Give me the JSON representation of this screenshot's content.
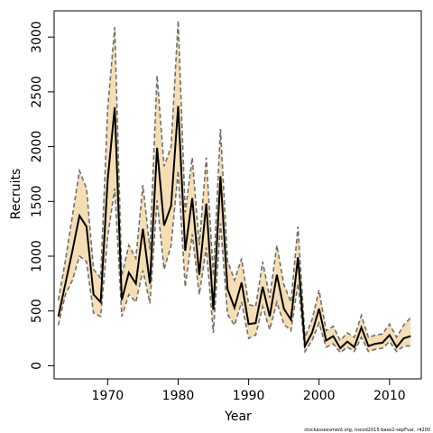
{
  "chart_data": {
    "type": "area",
    "xlabel": "Year",
    "ylabel": "Recruits",
    "footnote": "stockassessment.org, nscod2015-base2-sepFvar, r4200",
    "xlim": [
      1962.4,
      2014.5
    ],
    "ylim": [
      -120,
      3240
    ],
    "x_ticks": [
      1970,
      1980,
      1990,
      2000,
      2010
    ],
    "y_ticks": [
      0,
      500,
      1000,
      1500,
      2000,
      2500,
      3000
    ],
    "grid": false,
    "colors": {
      "band": "#f5deb3",
      "line": "#000000",
      "bounds": "#707070"
    },
    "series": [
      {
        "x": [
          1963,
          1964,
          1965,
          1966,
          1967,
          1968,
          1969,
          1970,
          1971,
          1972,
          1973,
          1974,
          1975,
          1976,
          1977,
          1978,
          1979,
          1980,
          1981,
          1982,
          1983,
          1984,
          1985,
          1986,
          1987,
          1988,
          1989,
          1990,
          1991,
          1992,
          1993,
          1994,
          1995,
          1996,
          1997,
          1998,
          1999,
          2000,
          2001,
          2002,
          2003,
          2004,
          2005,
          2006,
          2007,
          2008,
          2009,
          2010,
          2011,
          2012,
          2013
        ],
        "estimate": [
          450,
          750,
          1050,
          1370,
          1270,
          650,
          580,
          1700,
          2360,
          600,
          850,
          750,
          1250,
          750,
          1990,
          1280,
          1460,
          2370,
          1050,
          1530,
          830,
          1480,
          510,
          1730,
          700,
          530,
          760,
          380,
          390,
          720,
          450,
          830,
          520,
          420,
          990,
          180,
          300,
          520,
          230,
          270,
          160,
          220,
          170,
          350,
          180,
          200,
          210,
          280,
          170,
          250,
          270
        ],
        "lower": [
          370,
          650,
          780,
          1000,
          950,
          480,
          450,
          1180,
          1620,
          450,
          650,
          580,
          870,
          570,
          1510,
          880,
          1100,
          1780,
          720,
          1200,
          650,
          1080,
          300,
          1300,
          470,
          370,
          580,
          250,
          280,
          540,
          330,
          580,
          380,
          320,
          750,
          130,
          230,
          390,
          170,
          200,
          120,
          170,
          130,
          260,
          130,
          150,
          160,
          220,
          130,
          180,
          180
        ],
        "upper": [
          600,
          960,
          1370,
          1780,
          1620,
          880,
          800,
          2350,
          3090,
          820,
          1100,
          980,
          1650,
          1060,
          2650,
          1820,
          2000,
          3150,
          1400,
          1900,
          1100,
          1900,
          820,
          2160,
          960,
          780,
          980,
          560,
          540,
          950,
          620,
          1100,
          740,
          580,
          1270,
          260,
          420,
          690,
          320,
          360,
          230,
          300,
          260,
          460,
          260,
          280,
          290,
          380,
          260,
          370,
          440
        ]
      }
    ]
  }
}
